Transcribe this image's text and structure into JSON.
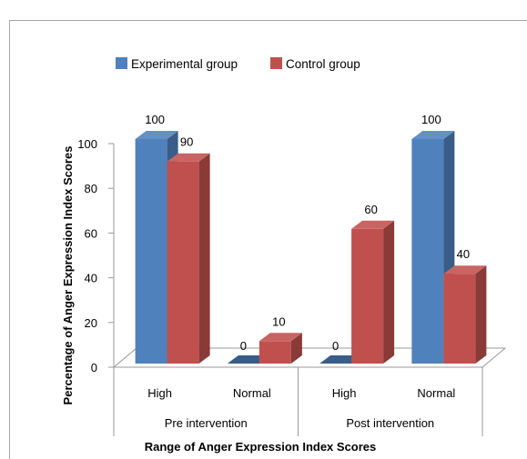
{
  "chart_data": {
    "type": "bar",
    "style": "3d-clustered-column",
    "title": "",
    "ylabel": "Percentage of Anger Expression Index Scores",
    "xlabel": "Range of Anger Expression Index Scores",
    "ylim": [
      0,
      100
    ],
    "yticks": [
      0,
      20,
      40,
      60,
      80,
      100
    ],
    "grid": false,
    "legend_position": "top",
    "groups": [
      {
        "label": "Pre intervention",
        "categories": [
          0,
          1
        ]
      },
      {
        "label": "Post intervention",
        "categories": [
          2,
          3
        ]
      }
    ],
    "categories": [
      "High",
      "Normal",
      "High",
      "Normal"
    ],
    "series": [
      {
        "name": "Experimental group",
        "color": "#4F81BD",
        "values": [
          100,
          0,
          0,
          100
        ]
      },
      {
        "name": "Control group",
        "color": "#C0504D",
        "values": [
          90,
          10,
          60,
          40
        ]
      }
    ]
  }
}
